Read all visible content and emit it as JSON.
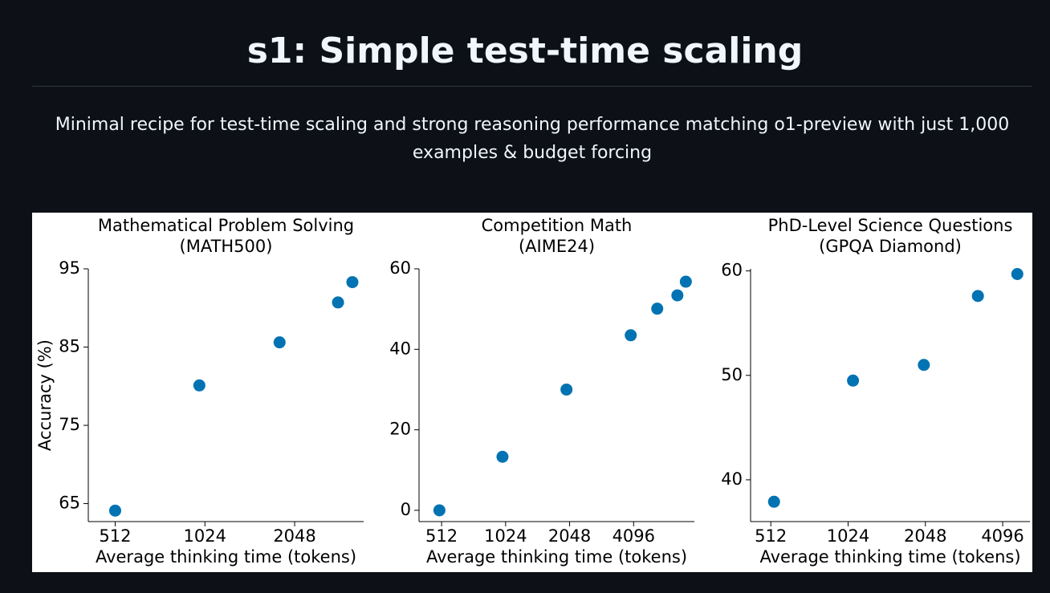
{
  "header": {
    "title": "s1: Simple test-time scaling",
    "subtitle": "Minimal recipe for test-time scaling and strong reasoning performance matching o1-preview with just 1,000 examples & budget forcing"
  },
  "chart_data": [
    {
      "type": "scatter",
      "title": [
        "Mathematical Problem Solving",
        "(MATH500)"
      ],
      "xlabel": "Average thinking time (tokens)",
      "ylabel": "Accuracy (%)",
      "xscale": "log",
      "color": "#0173b2",
      "x": [
        512,
        981,
        1823,
        2863,
        3199
      ],
      "values": [
        64.1,
        80.1,
        85.6,
        90.7,
        93.3
      ],
      "xlim": [
        416,
        3490
      ],
      "ylim": [
        62.7,
        95
      ],
      "xticks": [
        512,
        1024,
        2048
      ],
      "yticks": [
        65,
        75,
        85,
        95
      ]
    },
    {
      "type": "scatter",
      "title": [
        "Competition Math",
        "(AIME24)"
      ],
      "xlabel": "Average thinking time (tokens)",
      "xscale": "log",
      "color": "#0173b2",
      "x": [
        500,
        990,
        1980,
        3970,
        5290,
        6580,
        7210
      ],
      "values": [
        0,
        13.3,
        30.0,
        43.5,
        50.1,
        53.4,
        56.8
      ],
      "xlim": [
        401,
        7910
      ],
      "ylim": [
        -2.8,
        60
      ],
      "xticks": [
        512,
        1024,
        2048,
        4096
      ],
      "yticks": [
        0,
        20,
        40,
        60
      ]
    },
    {
      "type": "scatter",
      "title": [
        "PhD-Level Science Questions",
        "(GPQA Diamond)"
      ],
      "xlabel": "Average thinking time (tokens)",
      "xscale": "log",
      "color": "#0173b2",
      "x": [
        527,
        1070,
        2020,
        3280,
        4670
      ],
      "values": [
        37.9,
        49.5,
        51.0,
        57.6,
        59.7
      ],
      "xlim": [
        427,
        5230
      ],
      "ylim": [
        36.0,
        60.2
      ],
      "xticks": [
        512,
        1024,
        2048,
        4096
      ],
      "yticks": [
        40,
        50,
        60
      ]
    }
  ]
}
